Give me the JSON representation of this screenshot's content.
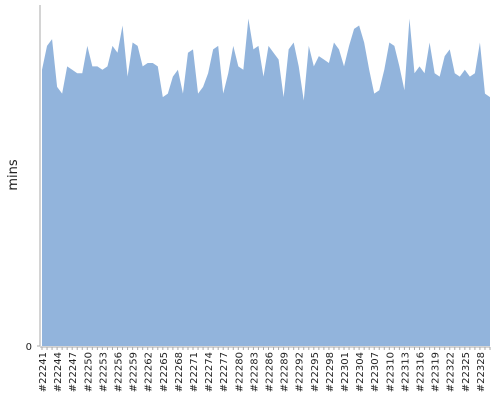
{
  "chart_data": {
    "type": "area",
    "y_label": "mins",
    "color": "#92b4dc",
    "categories": [
      "#22241",
      null,
      null,
      "#22244",
      null,
      null,
      "#22247",
      null,
      null,
      "#22250",
      null,
      null,
      "#22253",
      null,
      null,
      "#22256",
      null,
      null,
      "#22259",
      null,
      null,
      "#22262",
      null,
      null,
      "#22265",
      null,
      null,
      "#22268",
      null,
      null,
      "#22271",
      null,
      null,
      "#22274",
      null,
      null,
      "#22277",
      null,
      null,
      "#22280",
      null,
      null,
      "#22283",
      null,
      null,
      "#22286",
      null,
      null,
      "#22289",
      null,
      null,
      "#22292",
      null,
      null,
      "#22295",
      null,
      null,
      "#22298",
      null,
      null,
      "#22301",
      null,
      null,
      "#22304",
      null,
      null,
      "#22307",
      null,
      null,
      "#22310",
      null,
      null,
      "#22313",
      null,
      null,
      "#22316",
      null,
      null,
      "#22319",
      null,
      null,
      "#22322",
      null,
      null,
      "#22325",
      null,
      null,
      "#22328",
      null,
      null
    ],
    "values": [
      81,
      88,
      90,
      76,
      74,
      82,
      81,
      80,
      80,
      88,
      82,
      82,
      81,
      82,
      88,
      86,
      94,
      79,
      89,
      88,
      82,
      83,
      83,
      82,
      73,
      74,
      79,
      81,
      74,
      86,
      87,
      74,
      76,
      80,
      87,
      88,
      74,
      80,
      88,
      82,
      81,
      96,
      87,
      88,
      79,
      88,
      86,
      84,
      73,
      87,
      89,
      82,
      72,
      88,
      82,
      85,
      84,
      83,
      89,
      87,
      82,
      88,
      93,
      94,
      89,
      81,
      74,
      75,
      81,
      89,
      88,
      82,
      75,
      96,
      80,
      82,
      80,
      89,
      80,
      79,
      85,
      87,
      80,
      79,
      81,
      79,
      80,
      89,
      74,
      73
    ],
    "ylim": [
      0,
      100
    ],
    "yticks": [
      0
    ]
  }
}
